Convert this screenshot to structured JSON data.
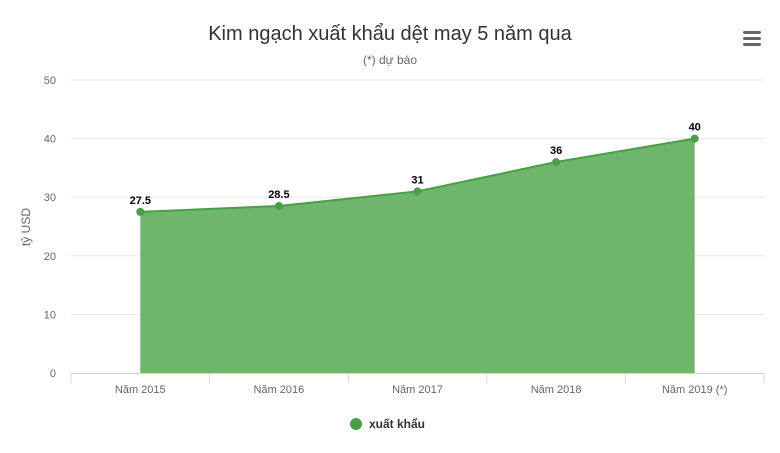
{
  "chart_data": {
    "type": "area",
    "title": "Kim ngạch xuất khẩu dệt may 5 năm qua",
    "subtitle": "(*) dự báo",
    "xlabel": "",
    "ylabel": "tỷ USD",
    "categories": [
      "Năm 2015",
      "Năm 2016",
      "Năm 2017",
      "Năm 2018",
      "Năm 2019 (*)"
    ],
    "series": [
      {
        "name": "xuất khẩu",
        "values": [
          27.5,
          28.5,
          31,
          36,
          40
        ],
        "color": "#4a9e48"
      }
    ],
    "ylim": [
      0,
      50
    ],
    "yticks": [
      0,
      10,
      20,
      30,
      40,
      50
    ],
    "grid": true,
    "legend": "bottom-center",
    "colors": {
      "area_fill": "#6fb56c",
      "line": "#4a9e48",
      "grid": "#e6e6e6"
    }
  },
  "menu_icon": "hamburger-menu-icon"
}
